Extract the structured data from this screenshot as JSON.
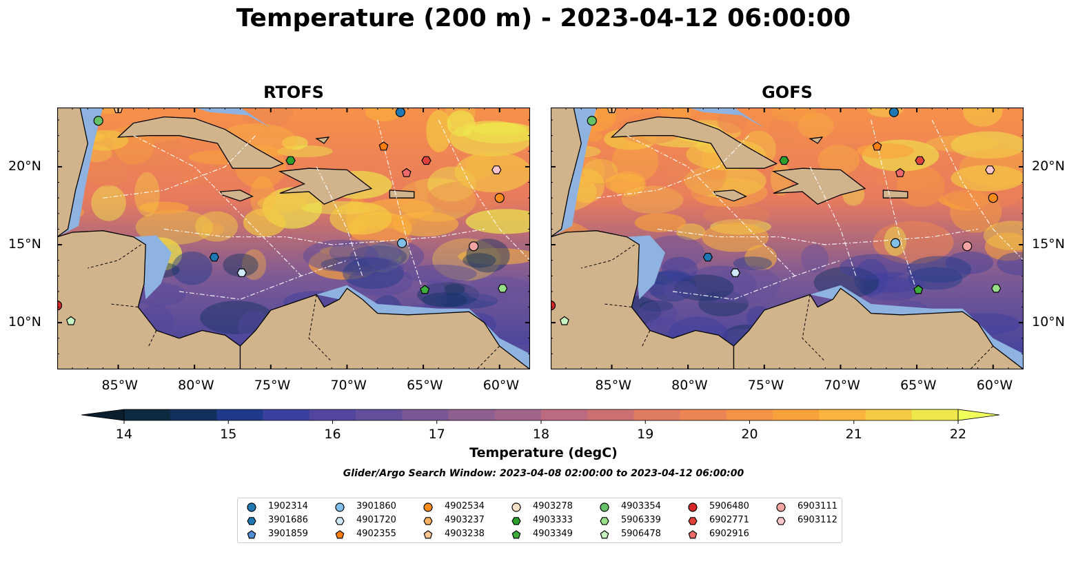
{
  "title": "Temperature (200 m) - 2023-04-12 06:00:00",
  "panels": [
    {
      "title": "RTOFS"
    },
    {
      "title": "GOFS"
    }
  ],
  "lon_labels": [
    "85°W",
    "80°W",
    "75°W",
    "70°W",
    "65°W",
    "60°W"
  ],
  "lat_labels": [
    "20°N",
    "15°N",
    "10°N"
  ],
  "colorbar": {
    "label": "Temperature (degC)",
    "ticks": [
      "14",
      "15",
      "16",
      "17",
      "18",
      "19",
      "20",
      "21",
      "22"
    ],
    "colors": [
      "#0d2a40",
      "#12315f",
      "#1f3a8a",
      "#3b3f9e",
      "#52469e",
      "#644f9c",
      "#7a5896",
      "#8e5f8f",
      "#a26488",
      "#bb6a80",
      "#cd7073",
      "#df7a63",
      "#ec8553",
      "#f59346",
      "#f9a23c",
      "#fbb43d",
      "#f5cb43",
      "#eee84d"
    ],
    "min_color": "#0b1e2e",
    "max_color": "#f2ff5a"
  },
  "search_window": "Glider/Argo Search Window: 2023-04-08 02:00:00 to 2023-04-12 06:00:00",
  "legend": [
    {
      "id": "1902314",
      "marker": "circle",
      "color": "#1f77b4"
    },
    {
      "id": "3901686",
      "marker": "hexagon",
      "color": "#1f77b4"
    },
    {
      "id": "3901859",
      "marker": "pentagon",
      "color": "#4f8ed6"
    },
    {
      "id": "3901860",
      "marker": "circle",
      "color": "#7fbfe8"
    },
    {
      "id": "4901720",
      "marker": "hexagon",
      "color": "#cfe8f7"
    },
    {
      "id": "4902355",
      "marker": "pentagon",
      "color": "#ff7f0e"
    },
    {
      "id": "4902534",
      "marker": "circle",
      "color": "#ff8c1a"
    },
    {
      "id": "4903237",
      "marker": "hexagon",
      "color": "#ffb061"
    },
    {
      "id": "4903238",
      "marker": "pentagon",
      "color": "#ffc890"
    },
    {
      "id": "4903278",
      "marker": "circle",
      "color": "#fde2c8"
    },
    {
      "id": "4903333",
      "marker": "hexagon",
      "color": "#2ca02c"
    },
    {
      "id": "4903349",
      "marker": "pentagon",
      "color": "#3cae3c"
    },
    {
      "id": "4903354",
      "marker": "circle",
      "color": "#66c266"
    },
    {
      "id": "5906339",
      "marker": "hexagon",
      "color": "#98df8a"
    },
    {
      "id": "5906478",
      "marker": "pentagon",
      "color": "#c8f2c0"
    },
    {
      "id": "5906480",
      "marker": "circle",
      "color": "#d62728"
    },
    {
      "id": "6902771",
      "marker": "hexagon",
      "color": "#e0423a"
    },
    {
      "id": "6902916",
      "marker": "pentagon",
      "color": "#ec6a6a"
    },
    {
      "id": "6903111",
      "marker": "circle",
      "color": "#f4a3a3"
    },
    {
      "id": "6903112",
      "marker": "hexagon",
      "color": "#fcc7cc"
    }
  ],
  "floats": [
    {
      "id": "4903354",
      "lon": -86.3,
      "lat": 22.95
    },
    {
      "id": "4903238",
      "lon": -85.0,
      "lat": 23.7
    },
    {
      "id": "1902314",
      "lon": -66.5,
      "lat": 23.5
    },
    {
      "id": "4902355",
      "lon": -67.6,
      "lat": 21.3
    },
    {
      "id": "4903333",
      "lon": -73.7,
      "lat": 20.4
    },
    {
      "id": "6902771",
      "lon": -64.8,
      "lat": 20.4
    },
    {
      "id": "6902916",
      "lon": -66.1,
      "lat": 19.6
    },
    {
      "id": "6903112",
      "lon": -60.2,
      "lat": 19.8
    },
    {
      "id": "4902534",
      "lon": -60.0,
      "lat": 18.0
    },
    {
      "id": "3901860",
      "lon": -66.4,
      "lat": 15.1
    },
    {
      "id": "6903111",
      "lon": -61.7,
      "lat": 14.9
    },
    {
      "id": "3901686",
      "lon": -78.7,
      "lat": 14.2
    },
    {
      "id": "4901720",
      "lon": -76.9,
      "lat": 13.2
    },
    {
      "id": "4903349",
      "lon": -64.9,
      "lat": 12.1
    },
    {
      "id": "5906339",
      "lon": -59.8,
      "lat": 12.2
    },
    {
      "id": "5906478",
      "lon": -88.1,
      "lat": 10.1
    },
    {
      "id": "5906480",
      "lon": -89.0,
      "lat": 11.1
    }
  ]
}
